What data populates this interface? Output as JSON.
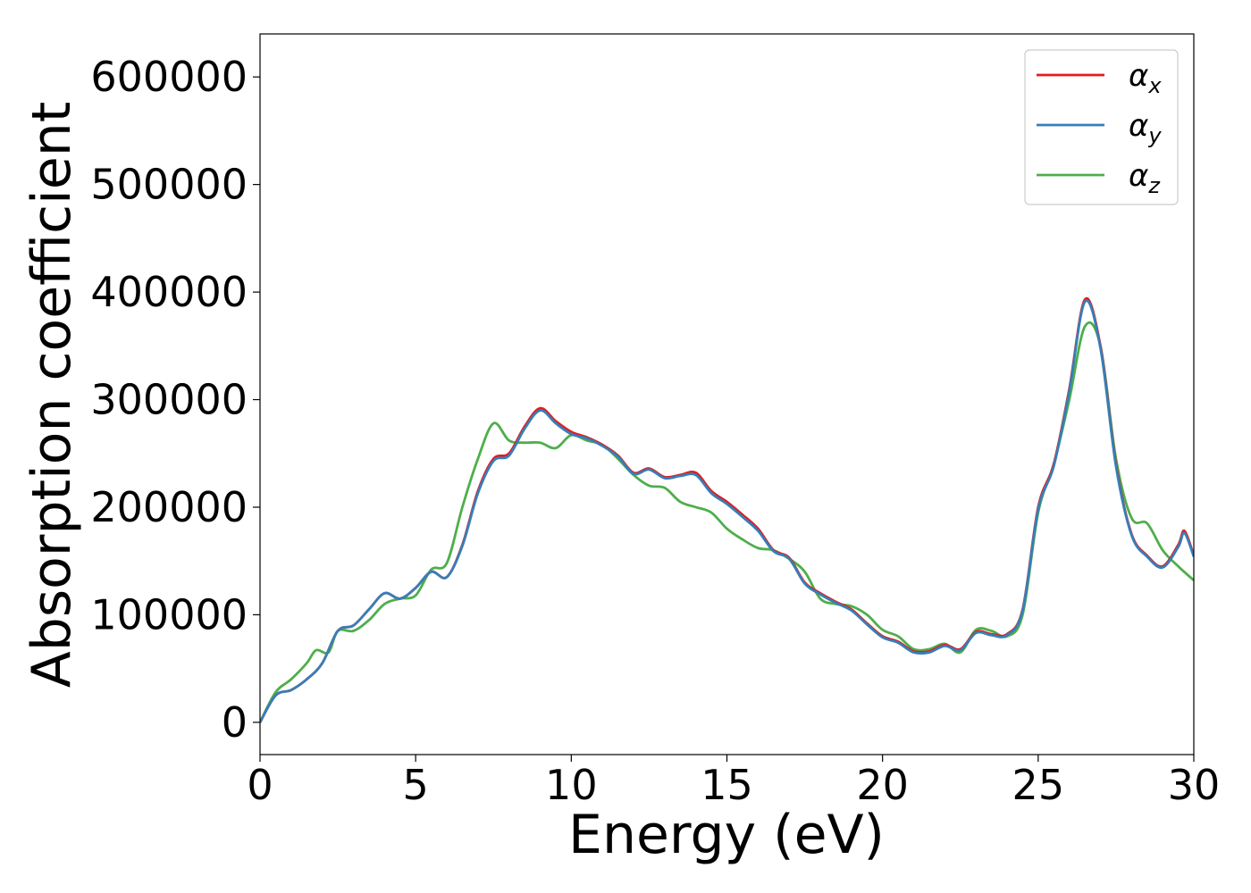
{
  "chart_data": {
    "type": "line",
    "xlabel": "Energy (eV)",
    "ylabel": "Absorption coefficient",
    "xlim": [
      0,
      30
    ],
    "ylim": [
      -30000,
      640000
    ],
    "xticks": [
      0,
      5,
      10,
      15,
      20,
      25,
      30
    ],
    "yticks": [
      0,
      100000,
      200000,
      300000,
      400000,
      500000,
      600000
    ],
    "legend_placement": "top-right",
    "grid": false,
    "series": [
      {
        "name": "α",
        "subscript": "x",
        "color": "#e41a1c",
        "x": [
          0,
          0.5,
          1,
          1.5,
          2,
          2.5,
          3,
          3.5,
          4,
          4.5,
          5,
          5.5,
          6,
          6.5,
          7,
          7.5,
          8,
          8.5,
          9,
          9.5,
          10,
          10.5,
          11,
          11.5,
          12,
          12.5,
          13,
          13.5,
          14,
          14.5,
          15,
          15.5,
          16,
          16.5,
          17,
          17.5,
          18,
          18.5,
          19,
          19.5,
          20,
          20.5,
          21,
          21.5,
          22,
          22.5,
          23,
          23.5,
          24,
          24.5,
          25,
          25.5,
          26,
          26.5,
          27,
          27.5,
          28,
          28.5,
          29,
          29.5,
          29.7,
          30
        ],
        "values": [
          0,
          25000,
          30000,
          40000,
          55000,
          85000,
          90000,
          105000,
          120000,
          115000,
          125000,
          140000,
          135000,
          165000,
          215000,
          245000,
          250000,
          275000,
          292000,
          280000,
          270000,
          265000,
          258000,
          248000,
          232000,
          236000,
          228000,
          230000,
          232000,
          215000,
          205000,
          193000,
          180000,
          160000,
          153000,
          130000,
          120000,
          112000,
          105000,
          92000,
          80000,
          75000,
          66000,
          66000,
          72000,
          68000,
          84000,
          82000,
          82000,
          105000,
          200000,
          240000,
          310000,
          393000,
          350000,
          240000,
          175000,
          155000,
          145000,
          165000,
          178000,
          155000
        ]
      },
      {
        "name": "α",
        "subscript": "y",
        "color": "#377eb8",
        "x": [
          0,
          0.5,
          1,
          1.5,
          2,
          2.5,
          3,
          3.5,
          4,
          4.5,
          5,
          5.5,
          6,
          6.5,
          7,
          7.5,
          8,
          8.5,
          9,
          9.5,
          10,
          10.5,
          11,
          11.5,
          12,
          12.5,
          13,
          13.5,
          14,
          14.5,
          15,
          15.5,
          16,
          16.5,
          17,
          17.5,
          18,
          18.5,
          19,
          19.5,
          20,
          20.5,
          21,
          21.5,
          22,
          22.5,
          23,
          23.5,
          24,
          24.5,
          25,
          25.5,
          26,
          26.5,
          27,
          27.5,
          28,
          28.5,
          29,
          29.5,
          29.7,
          30
        ],
        "values": [
          0,
          25000,
          30000,
          40000,
          55000,
          85000,
          90000,
          105000,
          120000,
          115000,
          125000,
          140000,
          135000,
          164000,
          213000,
          243000,
          248000,
          273000,
          290000,
          278000,
          268000,
          264000,
          257000,
          247000,
          231000,
          235000,
          227000,
          229000,
          230000,
          213000,
          203000,
          191000,
          178000,
          159000,
          152000,
          129000,
          119000,
          111000,
          104000,
          91000,
          79000,
          74000,
          65000,
          65000,
          71000,
          67000,
          83000,
          81000,
          81000,
          104000,
          198000,
          238000,
          308000,
          391000,
          348000,
          238000,
          174000,
          154000,
          144000,
          163000,
          176000,
          154000
        ]
      },
      {
        "name": "α",
        "subscript": "z",
        "color": "#4daf4a",
        "x": [
          0,
          0.5,
          1,
          1.5,
          1.8,
          2.2,
          2.5,
          3,
          3.5,
          4,
          4.5,
          5,
          5.5,
          6,
          6.5,
          7,
          7.5,
          8,
          8.5,
          9,
          9.5,
          10,
          10.5,
          11,
          11.5,
          12,
          12.5,
          13,
          13.5,
          14,
          14.5,
          15,
          15.5,
          16,
          16.5,
          17,
          17.5,
          18,
          18.5,
          19,
          19.5,
          20,
          20.5,
          21,
          21.5,
          22,
          22.5,
          23,
          23.5,
          24,
          24.5,
          25,
          25.5,
          26,
          26.5,
          27,
          27.5,
          28,
          28.5,
          29,
          29.5,
          30
        ],
        "values": [
          0,
          28000,
          40000,
          55000,
          67000,
          65000,
          85000,
          85000,
          95000,
          110000,
          115000,
          118000,
          142000,
          148000,
          200000,
          245000,
          278000,
          262000,
          260000,
          260000,
          255000,
          267000,
          262000,
          258000,
          245000,
          230000,
          220000,
          218000,
          205000,
          200000,
          195000,
          180000,
          170000,
          162000,
          160000,
          152000,
          140000,
          115000,
          110000,
          108000,
          100000,
          86000,
          80000,
          68000,
          68000,
          73000,
          65000,
          86000,
          85000,
          80000,
          100000,
          195000,
          240000,
          300000,
          368000,
          350000,
          245000,
          190000,
          185000,
          160000,
          145000,
          132000
        ]
      }
    ]
  }
}
